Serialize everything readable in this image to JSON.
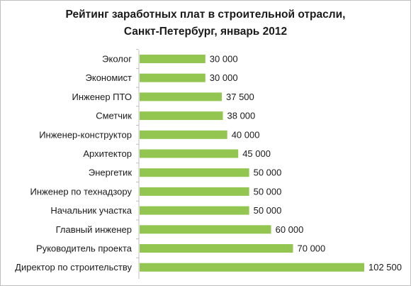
{
  "chart_data": {
    "type": "bar",
    "orientation": "horizontal",
    "title_lines": [
      "Рейтинг заработных плат в строительной отрасли,",
      "Санкт-Петербург, январь 2012"
    ],
    "categories": [
      "Эколог",
      "Экономист",
      "Инженер ПТО",
      "Сметчик",
      "Инженер-конструктор",
      "Архитектор",
      "Энергетик",
      "Инженер по технадзору",
      "Начальник участка",
      "Главный инженер",
      "Руководитель проекта",
      "Директор по строительству"
    ],
    "values": [
      30000,
      30000,
      37500,
      38000,
      40000,
      45000,
      50000,
      50000,
      50000,
      60000,
      70000,
      102500
    ],
    "value_labels": [
      "30 000",
      "30 000",
      "37 500",
      "38 000",
      "40 000",
      "45 000",
      "50 000",
      "50 000",
      "50 000",
      "60 000",
      "70 000",
      "102 500"
    ],
    "xlim": [
      0,
      102500
    ],
    "grid": false,
    "legend": "none",
    "bar_color": "#92c650"
  }
}
